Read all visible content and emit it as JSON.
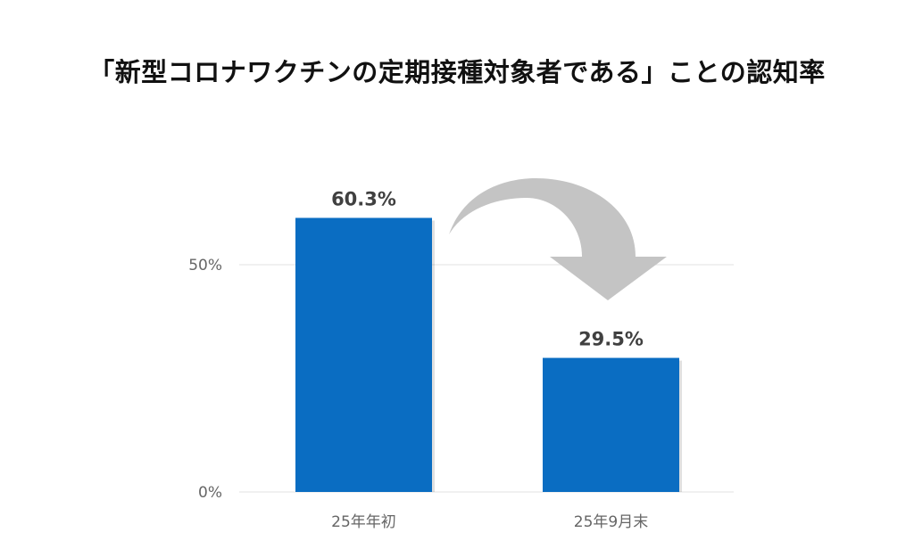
{
  "chart_data": {
    "type": "bar",
    "title": "「新型コロナワクチンの定期接種対象者である」ことの認知率",
    "categories": [
      "25年年初",
      "25年9月末"
    ],
    "values": [
      60.3,
      29.5
    ],
    "data_labels": [
      "60.3%",
      "29.5%"
    ],
    "ylim": [
      0,
      100
    ],
    "yticks": [
      {
        "value": 0,
        "label": "0%"
      },
      {
        "value": 50,
        "label": "50%"
      }
    ],
    "grid": true,
    "annotation": "curved-down-arrow from first bar to second bar",
    "colors": {
      "bar": "#0A6DC2",
      "arrow": "#C4C4C4",
      "grid": "#E6E6E6",
      "tick_text": "#666666",
      "label_text": "#404040"
    }
  }
}
